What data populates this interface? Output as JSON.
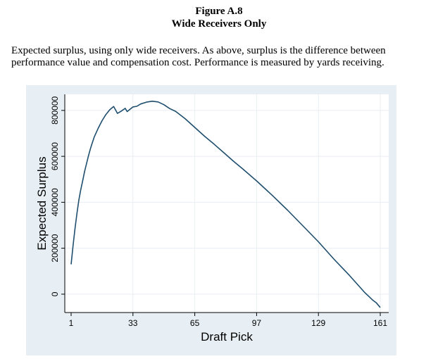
{
  "figure": {
    "number": "Figure A.8",
    "subtitle": "Wide Receivers Only",
    "caption_line1": "Expected surplus, using only wide receivers. As above, surplus is the difference between",
    "caption_line2": "performance value and compensation cost. Performance is measured by yards receiving."
  },
  "colors": {
    "panel_background": "#e8eff4",
    "plot_background": "#ffffff",
    "line": "#1f4e6e",
    "grid": "#e9eef2"
  },
  "chart_data": {
    "type": "line",
    "title": "",
    "xlabel": "Draft Pick",
    "ylabel": "Expected Surplus",
    "x_ticks": [
      1,
      33,
      65,
      97,
      129,
      161
    ],
    "y_ticks": [
      0,
      200000,
      400000,
      600000,
      800000
    ],
    "xlim": [
      1,
      161
    ],
    "ylim": [
      -80000,
      870000
    ],
    "grid": "vertical and horizontal at tick marks",
    "legend": "none",
    "series": [
      {
        "x": [
          1,
          2,
          3,
          4,
          5,
          6,
          7,
          8,
          9,
          10,
          11,
          12,
          13,
          15,
          17,
          19,
          21,
          23,
          25,
          27,
          29,
          30,
          33,
          35,
          37,
          40,
          43,
          46,
          49,
          52,
          55,
          60,
          65,
          70,
          75,
          80,
          85,
          90,
          97,
          105,
          113,
          121,
          129,
          137,
          145,
          153,
          157,
          159,
          161
        ],
        "y": [
          130000,
          210000,
          285000,
          350000,
          410000,
          455000,
          495000,
          535000,
          570000,
          603000,
          633000,
          660000,
          685000,
          722000,
          755000,
          782000,
          803000,
          817000,
          787000,
          797000,
          809000,
          795000,
          815000,
          818000,
          828000,
          836000,
          840000,
          837000,
          825000,
          808000,
          796000,
          764000,
          726000,
          688000,
          653000,
          616000,
          579000,
          544000,
          493000,
          431000,
          366000,
          297000,
          228000,
          153000,
          82000,
          7000,
          -25000,
          -38000,
          -58000
        ]
      }
    ]
  }
}
